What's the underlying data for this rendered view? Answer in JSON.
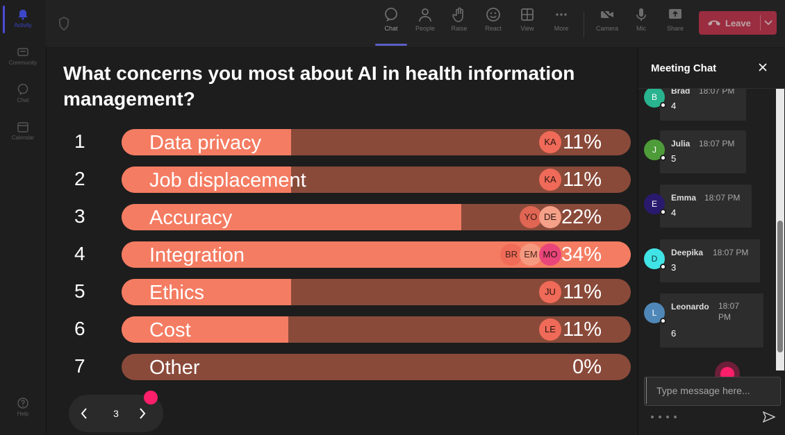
{
  "rail": {
    "items": [
      {
        "label": "Activity",
        "icon": "bell-icon"
      },
      {
        "label": "Community",
        "icon": "community-icon"
      },
      {
        "label": "Chat",
        "icon": "chat-icon"
      },
      {
        "label": "Calendar",
        "icon": "calendar-icon"
      },
      {
        "label": "Help",
        "icon": "help-icon"
      }
    ]
  },
  "toolbar": {
    "chat": "Chat",
    "people": "People",
    "raise": "Raise",
    "react": "React",
    "view": "View",
    "more": "More",
    "camera": "Camera",
    "mic": "Mic",
    "share": "Share",
    "leave": "Leave"
  },
  "poll": {
    "question": "What concerns you most about AI in health information management?",
    "options": [
      {
        "num": "1",
        "label": "Data privacy",
        "pct": "11%",
        "fill": 0.333,
        "voters": [
          "KA"
        ]
      },
      {
        "num": "2",
        "label": "Job displacement",
        "pct": "11%",
        "fill": 0.333,
        "voters": [
          "KA"
        ]
      },
      {
        "num": "3",
        "label": "Accuracy",
        "pct": "22%",
        "fill": 0.667,
        "voters": [
          "YO",
          "DE"
        ]
      },
      {
        "num": "4",
        "label": "Integration",
        "pct": "34%",
        "fill": 1.0,
        "voters": [
          "BR",
          "EM",
          "MO"
        ]
      },
      {
        "num": "5",
        "label": "Ethics",
        "pct": "11%",
        "fill": 0.333,
        "voters": [
          "JU"
        ]
      },
      {
        "num": "6",
        "label": "Cost",
        "pct": "11%",
        "fill": 0.327,
        "voters": [
          "LE"
        ]
      },
      {
        "num": "7",
        "label": "Other",
        "pct": "0%",
        "fill": 0,
        "voters": []
      }
    ]
  },
  "pager": {
    "page": "3"
  },
  "chat": {
    "title": "Meeting Chat",
    "messages": [
      {
        "initial": "B",
        "name": "Brad",
        "time": "18:07 PM",
        "text": "4",
        "color": "#29b38f"
      },
      {
        "initial": "J",
        "name": "Julia",
        "time": "18:07 PM",
        "text": "5",
        "color": "#4e9b3a"
      },
      {
        "initial": "E",
        "name": "Emma",
        "time": "18:07 PM",
        "text": "4",
        "color": "#2a1a6e"
      },
      {
        "initial": "D",
        "name": "Deepika",
        "time": "18:07 PM",
        "text": "3",
        "color": "#40e3e6"
      },
      {
        "initial": "L",
        "name": "Leonardo",
        "time": "18:07 PM",
        "text": "6",
        "color": "#4f87b8"
      }
    ],
    "input_placeholder": "Type message here..."
  },
  "colors": {
    "bar_fill": "#f47c62",
    "bar_track": "#8a4a3a",
    "leave": "#c4314b",
    "accent": "#5b5fc7",
    "pointer_dot": "#ff1f6b"
  }
}
